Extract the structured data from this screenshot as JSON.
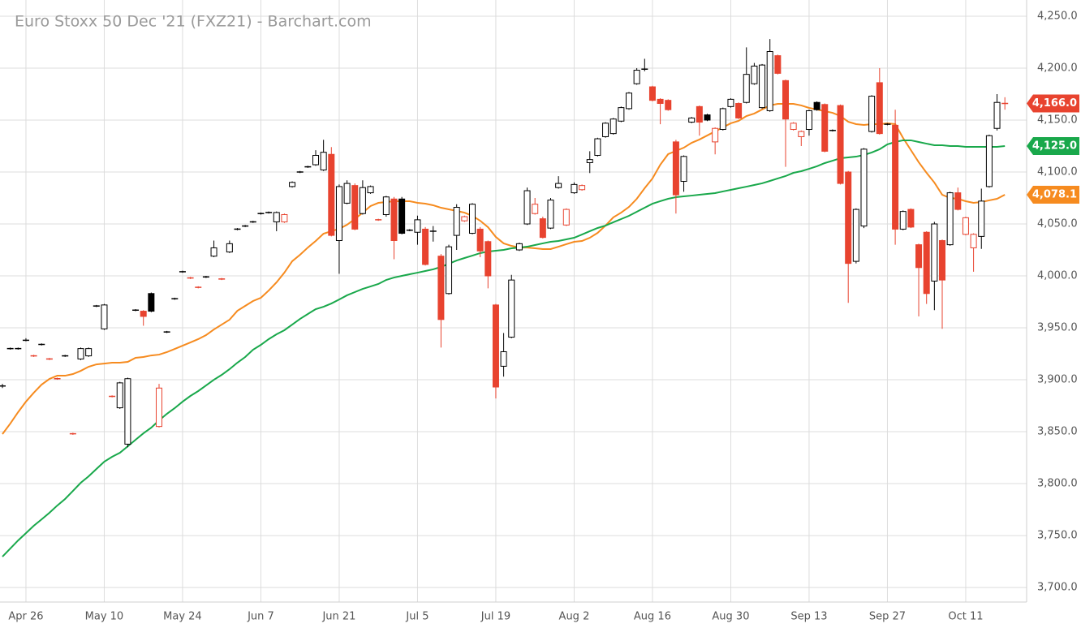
{
  "chart_data": {
    "type": "candlestick",
    "title": "Euro Stoxx 50 Dec '21 (FXZ21) - Barchart.com",
    "categories": [
      null,
      null,
      null,
      "Apr 26",
      null,
      null,
      null,
      null,
      null,
      null,
      null,
      null,
      null,
      "May 10",
      null,
      null,
      null,
      null,
      null,
      null,
      null,
      null,
      null,
      "May 24",
      null,
      null,
      null,
      null,
      null,
      null,
      null,
      null,
      null,
      "Jun 7",
      null,
      null,
      null,
      null,
      null,
      null,
      null,
      null,
      null,
      "Jun 21",
      null,
      null,
      null,
      null,
      null,
      null,
      null,
      null,
      null,
      "Jul 5",
      null,
      null,
      null,
      null,
      null,
      null,
      null,
      null,
      null,
      "Jul 19",
      null,
      null,
      null,
      null,
      null,
      null,
      null,
      null,
      null,
      "Aug 2",
      null,
      null,
      null,
      null,
      null,
      null,
      null,
      null,
      null,
      "Aug 16",
      null,
      null,
      null,
      null,
      null,
      null,
      null,
      null,
      null,
      "Aug 30",
      null,
      null,
      null,
      null,
      null,
      null,
      null,
      null,
      null,
      "Sep 13",
      null,
      null,
      null,
      null,
      null,
      null,
      null,
      null,
      null,
      "Sep 27",
      null,
      null,
      null,
      null,
      null,
      null,
      null,
      null,
      null,
      "Oct 11",
      null,
      null,
      null,
      null,
      null
    ],
    "open": [
      3894,
      3930,
      3930,
      3938,
      3923,
      3934,
      3920,
      3901,
      3923,
      3848,
      3920,
      3923,
      3971,
      3949,
      3884,
      3873,
      3838,
      3967,
      3966,
      3983,
      3855,
      3946,
      3978,
      4004,
      3998,
      3989,
      3999,
      4019,
      3997,
      4023,
      4045,
      4048,
      4052,
      4060,
      4061,
      4052,
      4052,
      4086,
      4100,
      4105,
      4107,
      4102,
      4117,
      4034,
      4070,
      4087,
      4060,
      4080,
      4054,
      4059,
      4074,
      4074,
      4044,
      4042,
      4045,
      4043,
      4019,
      3983,
      4039,
      4053,
      4041,
      4045,
      4033,
      3972,
      3913,
      3941,
      4025,
      4050,
      4060,
      4055,
      4046,
      4085,
      4049,
      4080,
      4083,
      4109,
      4116,
      4134,
      4137,
      4149,
      4161,
      4185,
      4199,
      4182,
      4170,
      4169,
      4129,
      4091,
      4148,
      4163,
      4155,
      4129,
      4141,
      4163,
      4166,
      4167,
      4185,
      4162,
      4159,
      4212,
      4188,
      4141,
      4134,
      4141,
      4167,
      4165,
      4140,
      4164,
      4100,
      4014,
      4048,
      4139,
      4186,
      4146,
      4145,
      4045,
      4064,
      4030,
      4042,
      3995,
      4034,
      4030,
      4080,
      4040,
      4027,
      4038,
      4086,
      4142,
      4166
    ],
    "high": [
      3896,
      3931,
      3931,
      3940,
      3924,
      3935,
      3921,
      3902,
      3924,
      3849,
      3931,
      3931,
      3972,
      3973,
      3885,
      3898,
      3902,
      3968,
      3967,
      3984,
      3896,
      3947,
      3979,
      4005,
      3999,
      3990,
      4000,
      4034,
      3998,
      4034,
      4046,
      4049,
      4053,
      4061,
      4062,
      4062,
      4060,
      4091,
      4101,
      4106,
      4121,
      4131,
      4124,
      4088,
      4092,
      4089,
      4092,
      4087,
      4055,
      4077,
      4076,
      4076,
      4045,
      4058,
      4047,
      4048,
      4021,
      4030,
      4069,
      4058,
      4070,
      4047,
      4034,
      3973,
      3945,
      4001,
      4032,
      4085,
      4075,
      4057,
      4075,
      4096,
      4065,
      4090,
      4088,
      4120,
      4133,
      4148,
      4152,
      4163,
      4177,
      4200,
      4209,
      4183,
      4171,
      4170,
      4131,
      4116,
      4153,
      4164,
      4156,
      4143,
      4162,
      4171,
      4167,
      4220,
      4205,
      4204,
      4228,
      4213,
      4189,
      4148,
      4140,
      4160,
      4168,
      4166,
      4141,
      4165,
      4101,
      4065,
      4123,
      4174,
      4200,
      4147,
      4160,
      4063,
      4065,
      4031,
      4043,
      4052,
      4035,
      4081,
      4085,
      4057,
      4041,
      4084,
      4136,
      4175,
      4172
    ],
    "low": [
      3892,
      3929,
      3929,
      3937,
      3922,
      3933,
      3919,
      3900,
      3922,
      3847,
      3919,
      3922,
      3970,
      3948,
      3883,
      3872,
      3835,
      3966,
      3952,
      3965,
      3854,
      3945,
      3977,
      4003,
      3997,
      3988,
      3998,
      4018,
      3996,
      4022,
      4044,
      4047,
      4051,
      4059,
      4060,
      4043,
      4051,
      4085,
      4099,
      4104,
      4106,
      4101,
      4038,
      4002,
      4069,
      4044,
      4059,
      4079,
      4053,
      4057,
      4016,
      4040,
      4043,
      4030,
      4010,
      4033,
      3931,
      3982,
      4025,
      4052,
      4040,
      4018,
      3988,
      3882,
      3903,
      3940,
      4024,
      4049,
      4059,
      4036,
      4045,
      4084,
      4048,
      4079,
      4082,
      4099,
      4115,
      4133,
      4136,
      4148,
      4160,
      4184,
      4197,
      4168,
      4146,
      4159,
      4060,
      4081,
      4147,
      4135,
      4149,
      4117,
      4140,
      4162,
      4151,
      4166,
      4184,
      4161,
      4158,
      4194,
      4105,
      4140,
      4125,
      4135,
      4159,
      4119,
      4139,
      4088,
      3974,
      4012,
      4046,
      4138,
      4136,
      4145,
      4030,
      4044,
      4046,
      3961,
      3973,
      3967,
      3949,
      4029,
      4063,
      4039,
      4004,
      4026,
      4085,
      4140,
      4160
    ],
    "close": [
      3894,
      3930,
      3930,
      3938,
      3923,
      3934,
      3920,
      3901,
      3923,
      3848,
      3930,
      3930,
      3971,
      3972,
      3884,
      3897,
      3901,
      3967,
      3961,
      3966,
      3892,
      3946,
      3978,
      4004,
      3998,
      3989,
      3999,
      4027,
      3997,
      4031,
      4045,
      4048,
      4052,
      4060,
      4061,
      4061,
      4059,
      4090,
      4100,
      4105,
      4116,
      4119,
      4039,
      4086,
      4089,
      4045,
      4085,
      4086,
      4054,
      4076,
      4034,
      4041,
      4044,
      4054,
      4011,
      4043,
      3958,
      4028,
      4066,
      4057,
      4069,
      4024,
      4000,
      3893,
      3927,
      3996,
      4031,
      4082,
      4069,
      4037,
      4073,
      4089,
      4064,
      4088,
      4087,
      4112,
      4132,
      4147,
      4151,
      4162,
      4176,
      4198,
      4199,
      4169,
      4166,
      4160,
      4078,
      4115,
      4152,
      4148,
      4150,
      4142,
      4161,
      4170,
      4152,
      4194,
      4202,
      4203,
      4216,
      4195,
      4151,
      4147,
      4139,
      4159,
      4160,
      4120,
      4140,
      4089,
      4012,
      4064,
      4122,
      4173,
      4137,
      4146,
      4045,
      4062,
      4047,
      4008,
      3983,
      4050,
      3996,
      4080,
      4064,
      4056,
      4040,
      4072,
      4135,
      4167,
      4166
    ],
    "last_label": "4,166.0",
    "up_color": "#000000",
    "down_color": "#e8432f",
    "overlays": [
      {
        "color": "#f68b1f",
        "last_label": "4,078.1",
        "values": [
          3847.7,
          3857.8,
          3868.8,
          3878.9,
          3887.5,
          3895.3,
          3900.8,
          3903.9,
          3903.9,
          3905.5,
          3908.6,
          3912.5,
          3914.8,
          3915.6,
          3916.4,
          3916.4,
          3917.2,
          3921.1,
          3921.9,
          3923.4,
          3924.2,
          3926.6,
          3929.7,
          3932.8,
          3935.9,
          3939.1,
          3943.0,
          3948.4,
          3953.1,
          3957.8,
          3966.4,
          3971.1,
          3975.8,
          3978.9,
          3985.9,
          3993.8,
          4003.1,
          4014.1,
          4020.3,
          4027.3,
          4033.6,
          4040.6,
          4043.0,
          4045.3,
          4049.2,
          4054.7,
          4060.9,
          4067.2,
          4070.3,
          4071.1,
          4071.9,
          4071.9,
          4071.9,
          4070.3,
          4069.5,
          4068.0,
          4065.6,
          4064.1,
          4062.5,
          4060.9,
          4057.8,
          4053.1,
          4046.9,
          4037.5,
          4031.3,
          4028.9,
          4027.3,
          4027.3,
          4026.6,
          4025.8,
          4025.8,
          4028.1,
          4030.5,
          4032.8,
          4033.6,
          4036.7,
          4041.4,
          4048.4,
          4056.3,
          4060.9,
          4066.4,
          4074.2,
          4084.4,
          4093.8,
          4107.0,
          4117.2,
          4120.3,
          4123.4,
          4128.1,
          4131.3,
          4135.2,
          4139.1,
          4143.0,
          4146.9,
          4149.2,
          4153.9,
          4156.3,
          4160.2,
          4164.1,
          4165.6,
          4165.6,
          4165.6,
          4164.1,
          4161.7,
          4160.2,
          4158.6,
          4157.0,
          4153.9,
          4148.4,
          4146.1,
          4145.3,
          4146.1,
          4146.1,
          4146.9,
          4146.1,
          4132.8,
          4121.1,
          4109.4,
          4099.2,
          4089.8,
          4078.1,
          4075.0,
          4074.2,
          4071.9,
          4070.3,
          4071.1,
          4072.7,
          4074.2,
          4078.1
        ]
      },
      {
        "color": "#19a84b",
        "last_label": "4,125.0",
        "values": [
          3729.7,
          3737.5,
          3745.3,
          3752.3,
          3759.4,
          3765.6,
          3771.9,
          3778.9,
          3785.2,
          3793.0,
          3800.8,
          3807.0,
          3814.1,
          3821.1,
          3825.8,
          3829.7,
          3835.9,
          3842.2,
          3848.4,
          3853.9,
          3860.9,
          3867.2,
          3872.7,
          3878.9,
          3884.4,
          3889.1,
          3894.5,
          3900.0,
          3904.7,
          3910.2,
          3916.4,
          3921.9,
          3928.9,
          3933.6,
          3939.1,
          3943.8,
          3947.7,
          3953.1,
          3958.6,
          3963.3,
          3968.0,
          3970.3,
          3973.4,
          3977.3,
          3981.3,
          3984.4,
          3987.5,
          3989.8,
          3992.2,
          3996.1,
          3998.4,
          4000.0,
          4001.6,
          4003.1,
          4004.7,
          4006.3,
          4008.6,
          4011.7,
          4014.8,
          4017.2,
          4019.5,
          4021.9,
          4023.4,
          4024.2,
          4025.0,
          4026.6,
          4027.3,
          4028.1,
          4029.7,
          4031.3,
          4032.8,
          4033.6,
          4035.2,
          4036.7,
          4039.8,
          4043.0,
          4046.1,
          4048.4,
          4051.6,
          4054.7,
          4057.8,
          4061.7,
          4065.6,
          4069.5,
          4071.9,
          4074.2,
          4075.8,
          4076.6,
          4077.3,
          4078.1,
          4078.9,
          4079.7,
          4081.3,
          4082.8,
          4084.4,
          4085.9,
          4087.5,
          4089.1,
          4091.4,
          4093.8,
          4096.1,
          4099.2,
          4100.8,
          4103.1,
          4105.5,
          4108.6,
          4110.9,
          4113.3,
          4114.1,
          4114.8,
          4116.4,
          4118.8,
          4121.9,
          4126.6,
          4128.9,
          4130.5,
          4130.5,
          4128.9,
          4127.3,
          4125.8,
          4125.8,
          4125.0,
          4125.0,
          4124.2,
          4124.2,
          4124.2,
          4124.2,
          4124.2,
          4125.0
        ]
      }
    ],
    "ylim": [
      3686,
      4265.6
    ],
    "yticks": [
      {
        "value": 3700,
        "label": "3,700.0"
      },
      {
        "value": 3750,
        "label": "3,750.0"
      },
      {
        "value": 3800,
        "label": "3,800.0"
      },
      {
        "value": 3850,
        "label": "3,850.0"
      },
      {
        "value": 3900,
        "label": "3,900.0"
      },
      {
        "value": 3950,
        "label": "3,950.0"
      },
      {
        "value": 4000,
        "label": "4,000.0"
      },
      {
        "value": 4050,
        "label": "4,050.0"
      },
      {
        "value": 4100,
        "label": "4,100.0"
      },
      {
        "value": 4150,
        "label": "4,150.0"
      },
      {
        "value": 4200,
        "label": "4,200.0"
      },
      {
        "value": 4250,
        "label": "4,250.0"
      }
    ],
    "grid": true
  }
}
